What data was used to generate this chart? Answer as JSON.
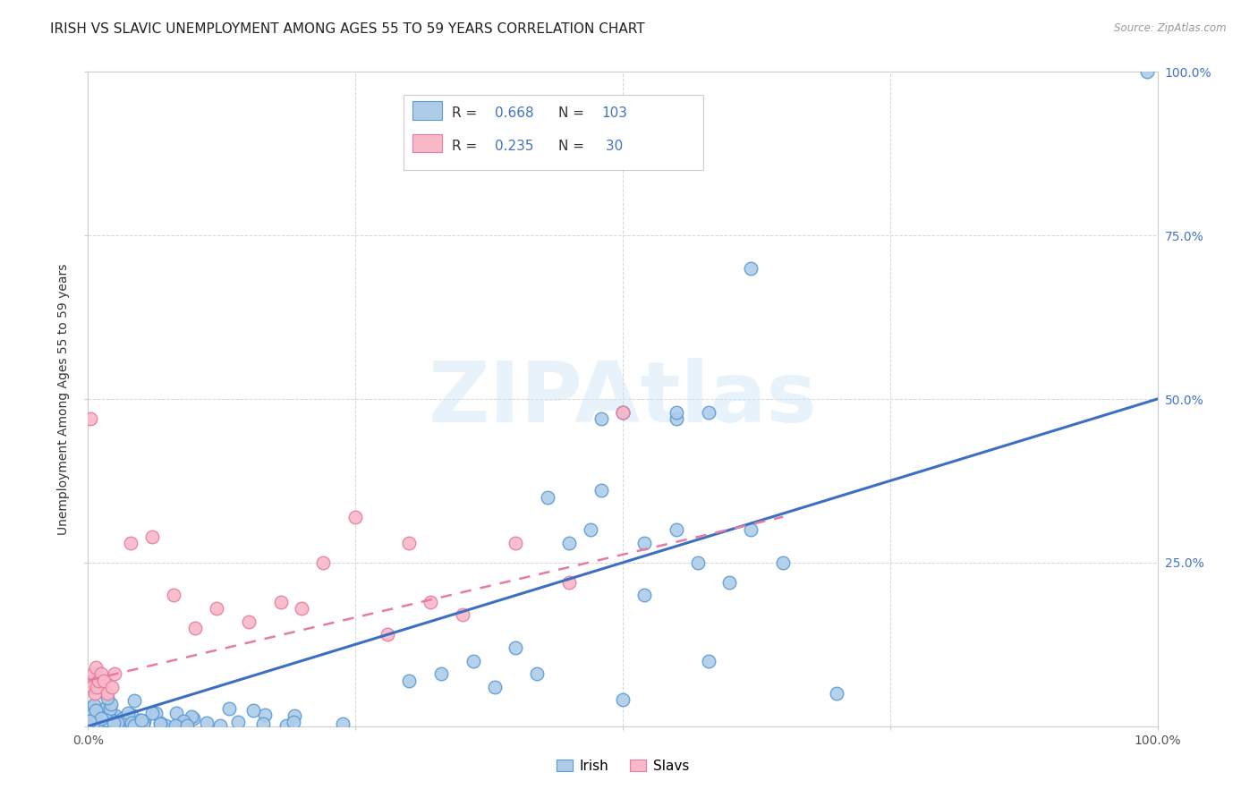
{
  "title": "IRISH VS SLAVIC UNEMPLOYMENT AMONG AGES 55 TO 59 YEARS CORRELATION CHART",
  "source": "Source: ZipAtlas.com",
  "ylabel": "Unemployment Among Ages 55 to 59 years",
  "watermark": "ZIPAtlas",
  "xlim": [
    0,
    1
  ],
  "ylim": [
    0,
    1
  ],
  "irish_color": "#aecce8",
  "irish_edge_color": "#5b9bd5",
  "slavic_color": "#f9b8c8",
  "slavic_edge_color": "#e87ca0",
  "irish_line_color": "#3a6fc4",
  "slavic_line_color": "#e87ca0",
  "legend_text_color": "#4472c4",
  "legend_N_color": "#ff3333",
  "right_tick_color": "#4472c4",
  "background_color": "#ffffff",
  "grid_color": "#cccccc",
  "title_fontsize": 11,
  "axis_label_fontsize": 10,
  "tick_fontsize": 10,
  "irish_R": "0.668",
  "irish_N": "103",
  "slavic_R": "0.235",
  "slavic_N": "30",
  "legend_label_irish": "Irish",
  "legend_label_slavic": "Slavs",
  "irish_line_x": [
    0.0,
    1.0
  ],
  "irish_line_y": [
    0.0,
    0.5
  ],
  "slavic_line_x": [
    0.0,
    0.65
  ],
  "slavic_line_y": [
    0.07,
    0.32
  ]
}
